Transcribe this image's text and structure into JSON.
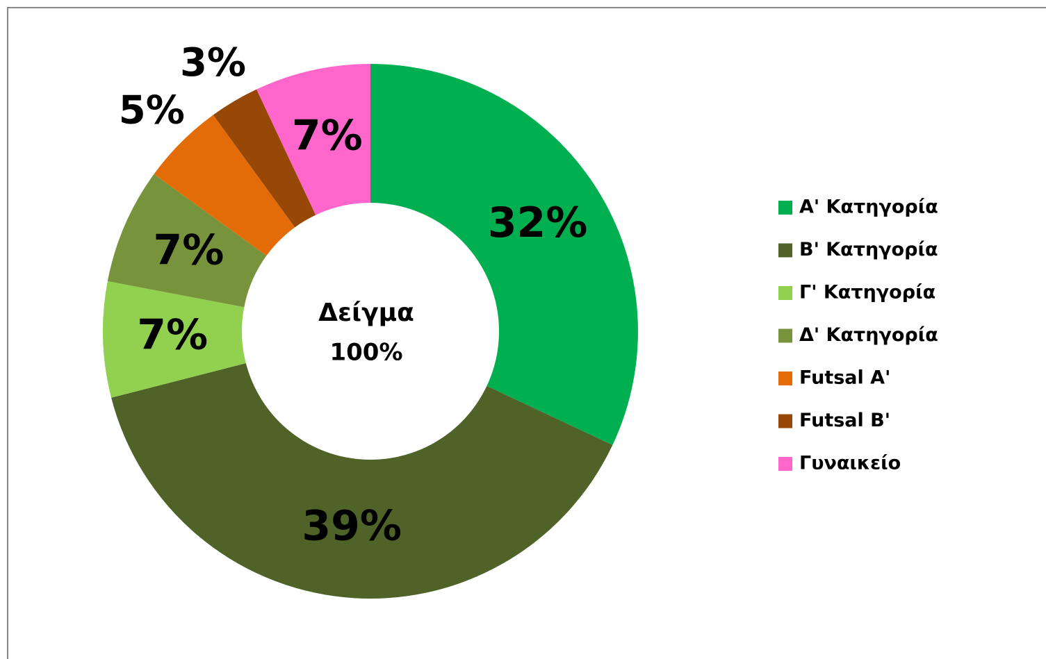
{
  "chart_data": {
    "type": "donut",
    "categories": [
      "Α' Κατηγορία",
      "Β' Κατηγορία",
      "Γ' Κατηγορία",
      "Δ' Κατηγορία",
      "Futsal Α'",
      "Futsal Β'",
      "Γυναικείο"
    ],
    "values": [
      32,
      39,
      7,
      7,
      5,
      3,
      7
    ],
    "value_labels": [
      "32%",
      "39%",
      "7%",
      "7%",
      "5%",
      "3%",
      "7%"
    ],
    "colors": [
      "#00b050",
      "#4f6228",
      "#92d050",
      "#77933c",
      "#e36c09",
      "#974706",
      "#ff66cc"
    ],
    "center_text": [
      "Δείγμα",
      "100%"
    ],
    "legend": "right"
  }
}
